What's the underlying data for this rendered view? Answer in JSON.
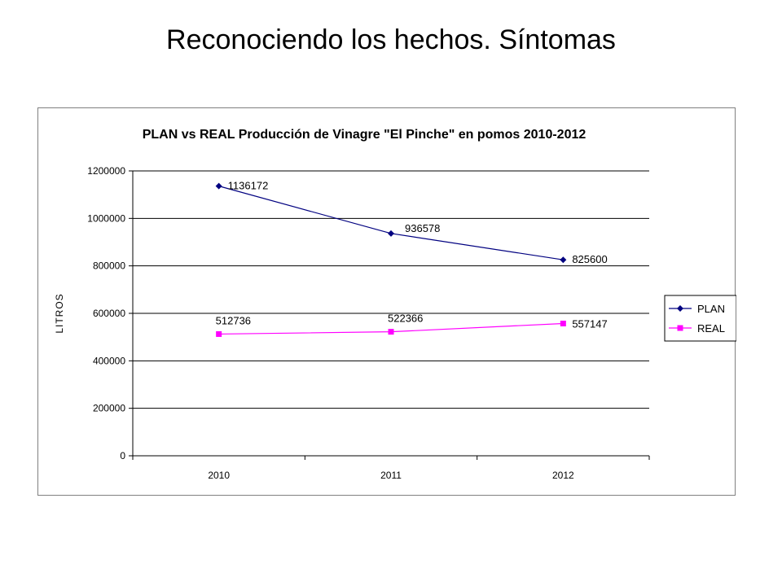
{
  "slide": {
    "title": "Reconociendo los hechos. Síntomas"
  },
  "chart_data": {
    "type": "line",
    "title": "PLAN vs REAL Producción de Vinagre \"El Pinche\" en pomos 2010-2012",
    "xlabel": "",
    "ylabel": "LITROS",
    "categories": [
      "2010",
      "2011",
      "2012"
    ],
    "ylim": [
      0,
      1200000
    ],
    "yticks": [
      0,
      200000,
      400000,
      600000,
      800000,
      1000000,
      1200000
    ],
    "grid": true,
    "legend_position": "right",
    "series": [
      {
        "name": "PLAN",
        "values": [
          1136172,
          936578,
          825600
        ],
        "color": "#000080",
        "marker": "diamond",
        "data_labels": true
      },
      {
        "name": "REAL",
        "values": [
          512736,
          522366,
          557147
        ],
        "color": "#FF00FF",
        "marker": "square",
        "data_labels": true
      }
    ]
  }
}
